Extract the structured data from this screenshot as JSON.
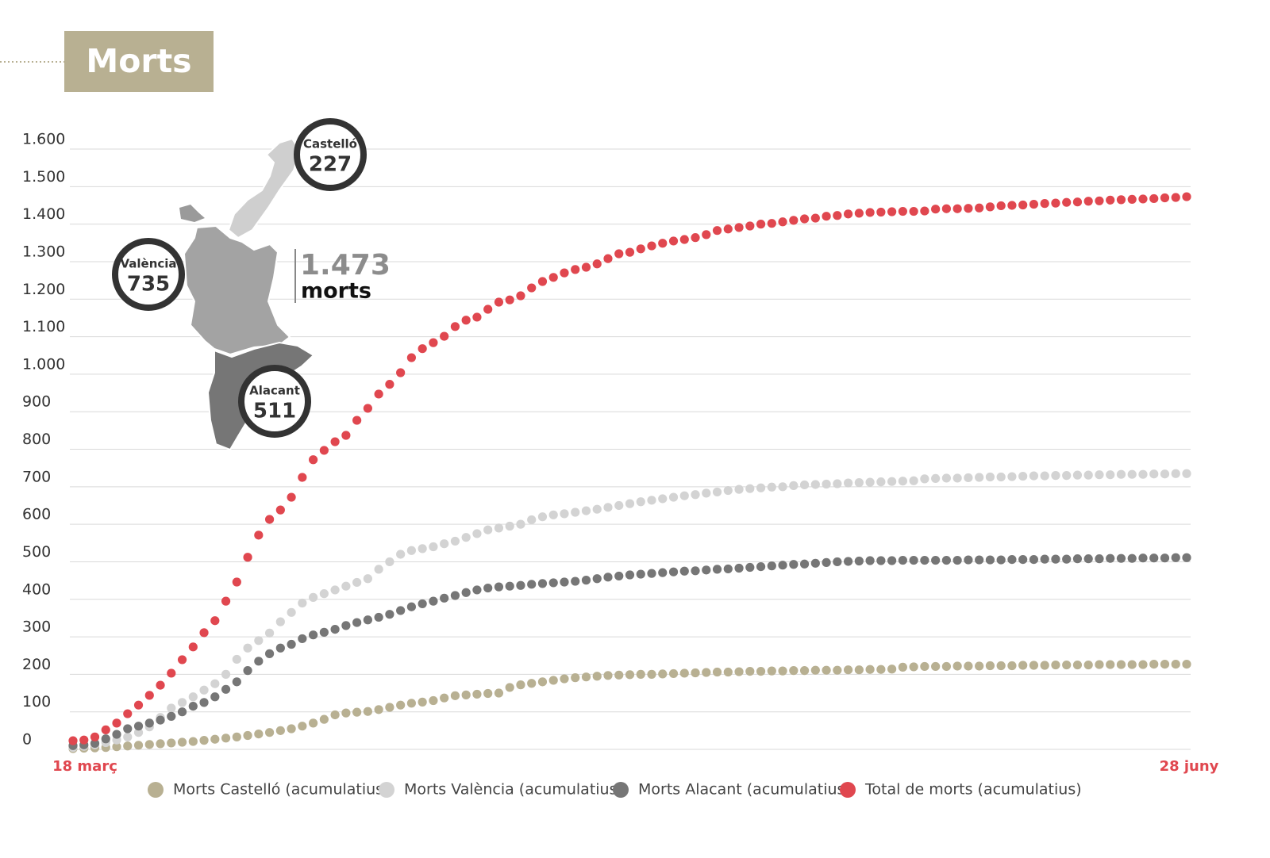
{
  "chart_data": {
    "type": "dot-line",
    "title": "Morts",
    "categories": [
      "18 març",
      null,
      null,
      null,
      null,
      null,
      null,
      null,
      null,
      null,
      null,
      null,
      null,
      null,
      null,
      null,
      null,
      null,
      null,
      null,
      null,
      null,
      null,
      null,
      null,
      null,
      null,
      null,
      null,
      null,
      null,
      null,
      null,
      null,
      null,
      null,
      null,
      null,
      null,
      null,
      null,
      null,
      null,
      null,
      null,
      null,
      null,
      null,
      null,
      null,
      null,
      null,
      null,
      null,
      null,
      null,
      null,
      null,
      null,
      null,
      null,
      null,
      null,
      null,
      null,
      null,
      null,
      null,
      null,
      null,
      null,
      null,
      null,
      null,
      null,
      null,
      null,
      null,
      null,
      null,
      null,
      null,
      null,
      null,
      null,
      null,
      null,
      null,
      null,
      null,
      null,
      null,
      null,
      null,
      null,
      null,
      null,
      null,
      null,
      null,
      null,
      null,
      "28 juny"
    ],
    "ylim": [
      0,
      1600
    ],
    "yticks": [
      0,
      100,
      200,
      300,
      400,
      500,
      600,
      700,
      800,
      900,
      {
        "value": 1000,
        "label": "1.000"
      },
      {
        "value": 1100,
        "label": "1.100"
      },
      {
        "value": 1200,
        "label": "1.200"
      },
      {
        "value": 1300,
        "label": "1.300"
      },
      {
        "value": 1400,
        "label": "1.400"
      },
      {
        "value": 1500,
        "label": "1.500"
      },
      {
        "value": 1600,
        "label": "1.600"
      }
    ],
    "grid": true,
    "legend": "bottom",
    "series": [
      {
        "name": "Morts Castelló (acumulatius)",
        "color": "#b8b092",
        "values": [
          2,
          3,
          4,
          5,
          7,
          9,
          11,
          13,
          15,
          17,
          19,
          21,
          24,
          27,
          30,
          33,
          37,
          41,
          45,
          50,
          55,
          62,
          70,
          80,
          92,
          97,
          99,
          101,
          106,
          112,
          118,
          123,
          126,
          130,
          137,
          143,
          145,
          147,
          149,
          150,
          165,
          172,
          176,
          180,
          184,
          188,
          191,
          193,
          195,
          197,
          198,
          199,
          200,
          200,
          201,
          202,
          203,
          204,
          205,
          206,
          206,
          207,
          208,
          208,
          209,
          209,
          210,
          210,
          211,
          211,
          211,
          212,
          212,
          213,
          213,
          214,
          219,
          220,
          221,
          221,
          221,
          222,
          222,
          222,
          223,
          223,
          223,
          224,
          224,
          224,
          225,
          225,
          225,
          225,
          226,
          226,
          226,
          226,
          226,
          227,
          227,
          227,
          227
        ]
      },
      {
        "name": "Morts València (acumulatius)",
        "color": "#d3d3d3",
        "values": [
          5,
          8,
          12,
          18,
          25,
          33,
          45,
          60,
          85,
          110,
          125,
          140,
          158,
          175,
          200,
          240,
          270,
          290,
          310,
          340,
          365,
          390,
          405,
          415,
          425,
          435,
          445,
          455,
          480,
          500,
          520,
          530,
          535,
          540,
          548,
          555,
          565,
          575,
          585,
          590,
          595,
          600,
          612,
          620,
          625,
          628,
          632,
          636,
          640,
          645,
          650,
          655,
          660,
          664,
          668,
          672,
          676,
          679,
          683,
          686,
          690,
          693,
          695,
          697,
          699,
          700,
          703,
          705,
          706,
          707,
          708,
          710,
          711,
          712,
          713,
          714,
          715,
          716,
          721,
          722,
          723,
          723,
          724,
          725,
          726,
          726,
          727,
          728,
          729,
          729,
          730,
          730,
          731,
          731,
          732,
          732,
          733,
          733,
          733,
          734,
          734,
          735,
          735
        ]
      },
      {
        "name": "Morts Alacant (acumulatius)",
        "color": "#767676",
        "values": [
          10,
          12,
          16,
          28,
          40,
          55,
          62,
          70,
          78,
          88,
          100,
          115,
          125,
          140,
          160,
          180,
          210,
          235,
          255,
          270,
          280,
          295,
          305,
          312,
          320,
          330,
          338,
          345,
          352,
          360,
          370,
          380,
          388,
          395,
          403,
          410,
          418,
          425,
          430,
          433,
          435,
          437,
          440,
          442,
          444,
          446,
          448,
          451,
          455,
          459,
          462,
          465,
          467,
          469,
          471,
          473,
          475,
          476,
          478,
          480,
          481,
          483,
          485,
          487,
          489,
          491,
          493,
          494,
          496,
          498,
          500,
          501,
          502,
          503,
          503,
          503,
          504,
          504,
          504,
          504,
          504,
          504,
          505,
          505,
          505,
          505,
          506,
          506,
          506,
          507,
          507,
          507,
          508,
          508,
          508,
          509,
          509,
          509,
          510,
          510,
          510,
          511,
          511
        ]
      },
      {
        "name": "Total de morts (acumulatius)",
        "color": "#e0474f",
        "values": [
          23,
          25,
          33,
          52,
          70,
          95,
          118,
          144,
          171,
          203,
          239,
          273,
          311,
          343,
          395,
          446,
          512,
          571,
          613,
          638,
          672,
          725,
          772,
          797,
          820,
          837,
          877,
          909,
          947,
          973,
          1004,
          1044,
          1068,
          1084,
          1101,
          1127,
          1144,
          1152,
          1173,
          1192,
          1198,
          1209,
          1230,
          1247,
          1258,
          1270,
          1279,
          1285,
          1294,
          1308,
          1321,
          1325,
          1334,
          1342,
          1349,
          1355,
          1359,
          1364,
          1372,
          1383,
          1387,
          1391,
          1395,
          1400,
          1402,
          1406,
          1410,
          1414,
          1416,
          1421,
          1423,
          1427,
          1429,
          1431,
          1432,
          1433,
          1434,
          1434,
          1435,
          1440,
          1441,
          1441,
          1442,
          1443,
          1446,
          1449,
          1450,
          1451,
          1453,
          1455,
          1456,
          1458,
          1459,
          1461,
          1462,
          1464,
          1465,
          1466,
          1467,
          1468,
          1470,
          1471,
          1473
        ]
      }
    ],
    "map_labels": [
      {
        "name": "Castelló",
        "value": 227
      },
      {
        "name": "València",
        "value": 735
      },
      {
        "name": "Alacant",
        "value": 511
      }
    ],
    "total_label": "1.473",
    "total_unit": "morts"
  }
}
